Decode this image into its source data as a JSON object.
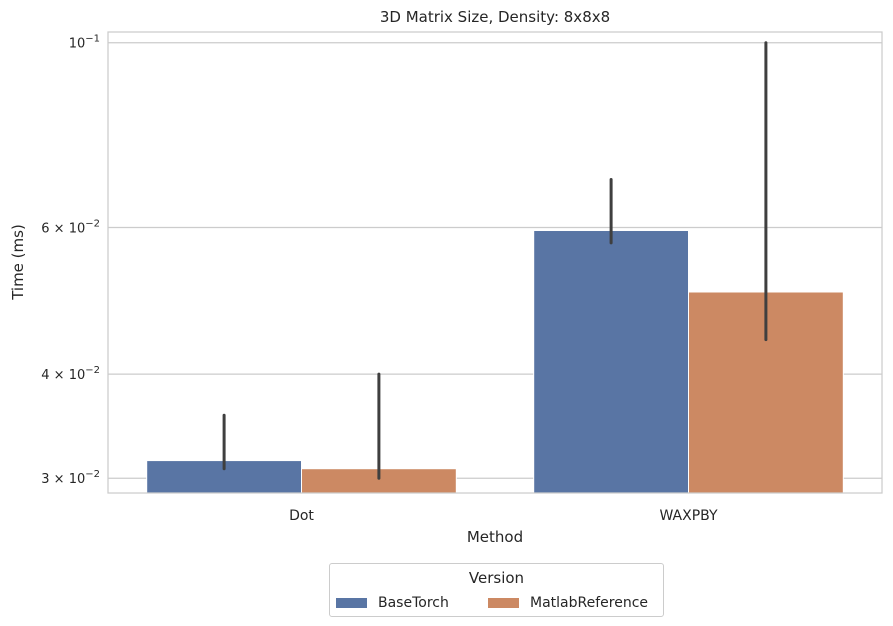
{
  "chart_data": {
    "type": "bar",
    "title": "3D Matrix Size, Density: 8x8x8",
    "xlabel": "Method",
    "ylabel": "Time (ms)",
    "yscale": "log",
    "ylim": [
      0.0288,
      0.103
    ],
    "categories": [
      "Dot",
      "WAXPBY"
    ],
    "yticks": [
      {
        "value": 0.1,
        "base": "10",
        "exp": "−1",
        "mant": ""
      },
      {
        "value": 0.06,
        "base": "10",
        "exp": "−2",
        "mant": "6 × "
      },
      {
        "value": 0.04,
        "base": "10",
        "exp": "−2",
        "mant": "4 × "
      },
      {
        "value": 0.03,
        "base": "10",
        "exp": "−2",
        "mant": "3 × "
      }
    ],
    "grid": true,
    "series": [
      {
        "name": "BaseTorch",
        "color": "#5975a4",
        "values": [
          0.0315,
          0.0595
        ],
        "err_low": [
          0.0308,
          0.0575
        ],
        "err_high": [
          0.0357,
          0.0685
        ]
      },
      {
        "name": "MatlabReference",
        "color": "#cc8963",
        "values": [
          0.0308,
          0.0502
        ],
        "err_low": [
          0.03,
          0.044
        ],
        "err_high": [
          0.04,
          0.1
        ]
      }
    ],
    "legend": {
      "title": "Version",
      "placement": "bottom-center"
    }
  }
}
